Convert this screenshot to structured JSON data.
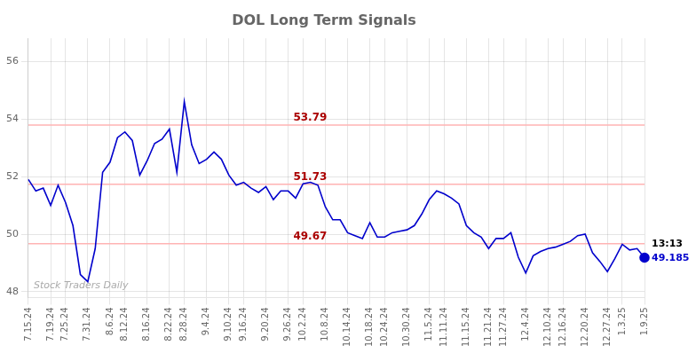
{
  "chart_data": {
    "type": "line",
    "title": "DOL Long Term Signals",
    "categories": [
      "7.15.24",
      null,
      null,
      "7.19.24",
      null,
      "7.25.24",
      null,
      null,
      "7.31.24",
      null,
      null,
      "8.6.24",
      null,
      "8.12.24",
      null,
      null,
      "8.16.24",
      null,
      null,
      "8.22.24",
      null,
      "8.28.24",
      null,
      null,
      "9.4.24",
      null,
      null,
      "9.10.24",
      null,
      "9.16.24",
      null,
      null,
      "9.20.24",
      null,
      null,
      "9.26.24",
      null,
      "10.2.24",
      null,
      null,
      "10.8.24",
      null,
      null,
      "10.14.24",
      null,
      null,
      "10.18.24",
      null,
      "10.24.24",
      null,
      null,
      "10.30.24",
      null,
      null,
      "11.5.24",
      null,
      "11.11.24",
      null,
      null,
      "11.15.24",
      null,
      null,
      "11.21.24",
      null,
      "11.27.24",
      null,
      null,
      "12.4.24",
      null,
      null,
      "12.10.24",
      null,
      "12.16.24",
      null,
      null,
      "12.20.24",
      null,
      null,
      "12.27.24",
      null,
      "1.3.25",
      null,
      null,
      "1.9.25"
    ],
    "values": [
      51.9,
      51.5,
      51.6,
      51.0,
      51.7,
      51.1,
      50.3,
      48.6,
      48.35,
      49.5,
      52.15,
      52.5,
      53.35,
      53.55,
      53.25,
      52.05,
      52.55,
      53.15,
      53.3,
      53.65,
      52.15,
      54.6,
      53.1,
      52.45,
      52.6,
      52.85,
      52.6,
      52.05,
      51.7,
      51.8,
      51.6,
      51.45,
      51.65,
      51.2,
      51.5,
      51.5,
      51.25,
      51.75,
      51.8,
      51.7,
      50.95,
      50.5,
      50.5,
      50.05,
      49.95,
      49.85,
      50.4,
      49.9,
      49.9,
      50.05,
      50.1,
      50.15,
      50.3,
      50.7,
      51.2,
      51.5,
      51.4,
      51.25,
      51.05,
      50.3,
      50.05,
      49.9,
      49.5,
      49.85,
      49.85,
      50.05,
      49.2,
      48.65,
      49.25,
      49.4,
      49.5,
      49.55,
      49.65,
      49.75,
      49.95,
      50.0,
      49.35,
      49.05,
      48.7,
      49.15,
      49.65,
      49.45,
      49.5,
      49.185
    ],
    "color": "#0000cc",
    "marker": "circle",
    "ylim": [
      47.8,
      56.8
    ],
    "yticks": [
      48,
      50,
      52,
      54,
      56
    ],
    "grid": true,
    "hlines": [
      {
        "value": 53.79,
        "color": "#ffb3b3",
        "label": "53.79",
        "label_color": "#aa0000"
      },
      {
        "value": 51.73,
        "color": "#ffb3b3",
        "label": "51.73",
        "label_color": "#aa0000"
      },
      {
        "value": 49.67,
        "color": "#ffb3b3",
        "label": "49.67",
        "label_color": "#aa0000"
      }
    ],
    "annotations": [
      {
        "text": "13:13",
        "color": "#000000"
      },
      {
        "text": "49.185",
        "color": "#0000cc"
      }
    ],
    "watermark": "Stock Traders Daily"
  }
}
